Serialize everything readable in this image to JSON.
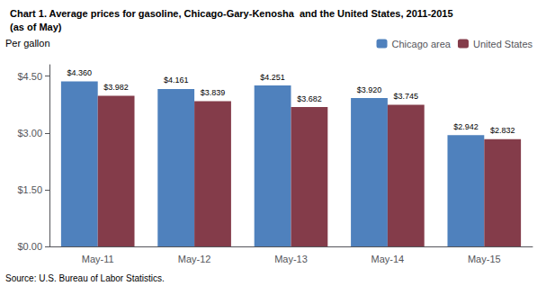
{
  "chart_data": {
    "type": "bar",
    "title": "Chart 1. Average prices for gasoline, Chicago-Gary-Kenosha  and the United States, 2011-2015",
    "subtitle": "(as of May)",
    "ylabel": "Per gallon",
    "annotations": [
      "Source: U.S. Bureau of Labor Statistics."
    ],
    "categories": [
      "May-11",
      "May-12",
      "May-13",
      "May-14",
      "May-15"
    ],
    "series": [
      {
        "name": "Chicago area",
        "color": "#4F81BD",
        "values": [
          4.36,
          4.161,
          4.251,
          3.92,
          2.942
        ],
        "value_labels": [
          "$4.360",
          "$4.161",
          "$4.251",
          "$3.920",
          "$2.942"
        ]
      },
      {
        "name": "United States",
        "color": "#843C4A",
        "values": [
          3.982,
          3.839,
          3.682,
          3.745,
          2.832
        ],
        "value_labels": [
          "$3.982",
          "$3.839",
          "$3.682",
          "$3.745",
          "$2.832"
        ]
      }
    ],
    "ylim": [
      0,
      4.8
    ],
    "yticks": [
      {
        "value": 0.0,
        "label": "$0.00"
      },
      {
        "value": 1.5,
        "label": "$1.50"
      },
      {
        "value": 3.0,
        "label": "$3.00"
      },
      {
        "value": 4.5,
        "label": "$4.50"
      }
    ],
    "grid": false,
    "legend": "upper right",
    "data_labels": true
  }
}
